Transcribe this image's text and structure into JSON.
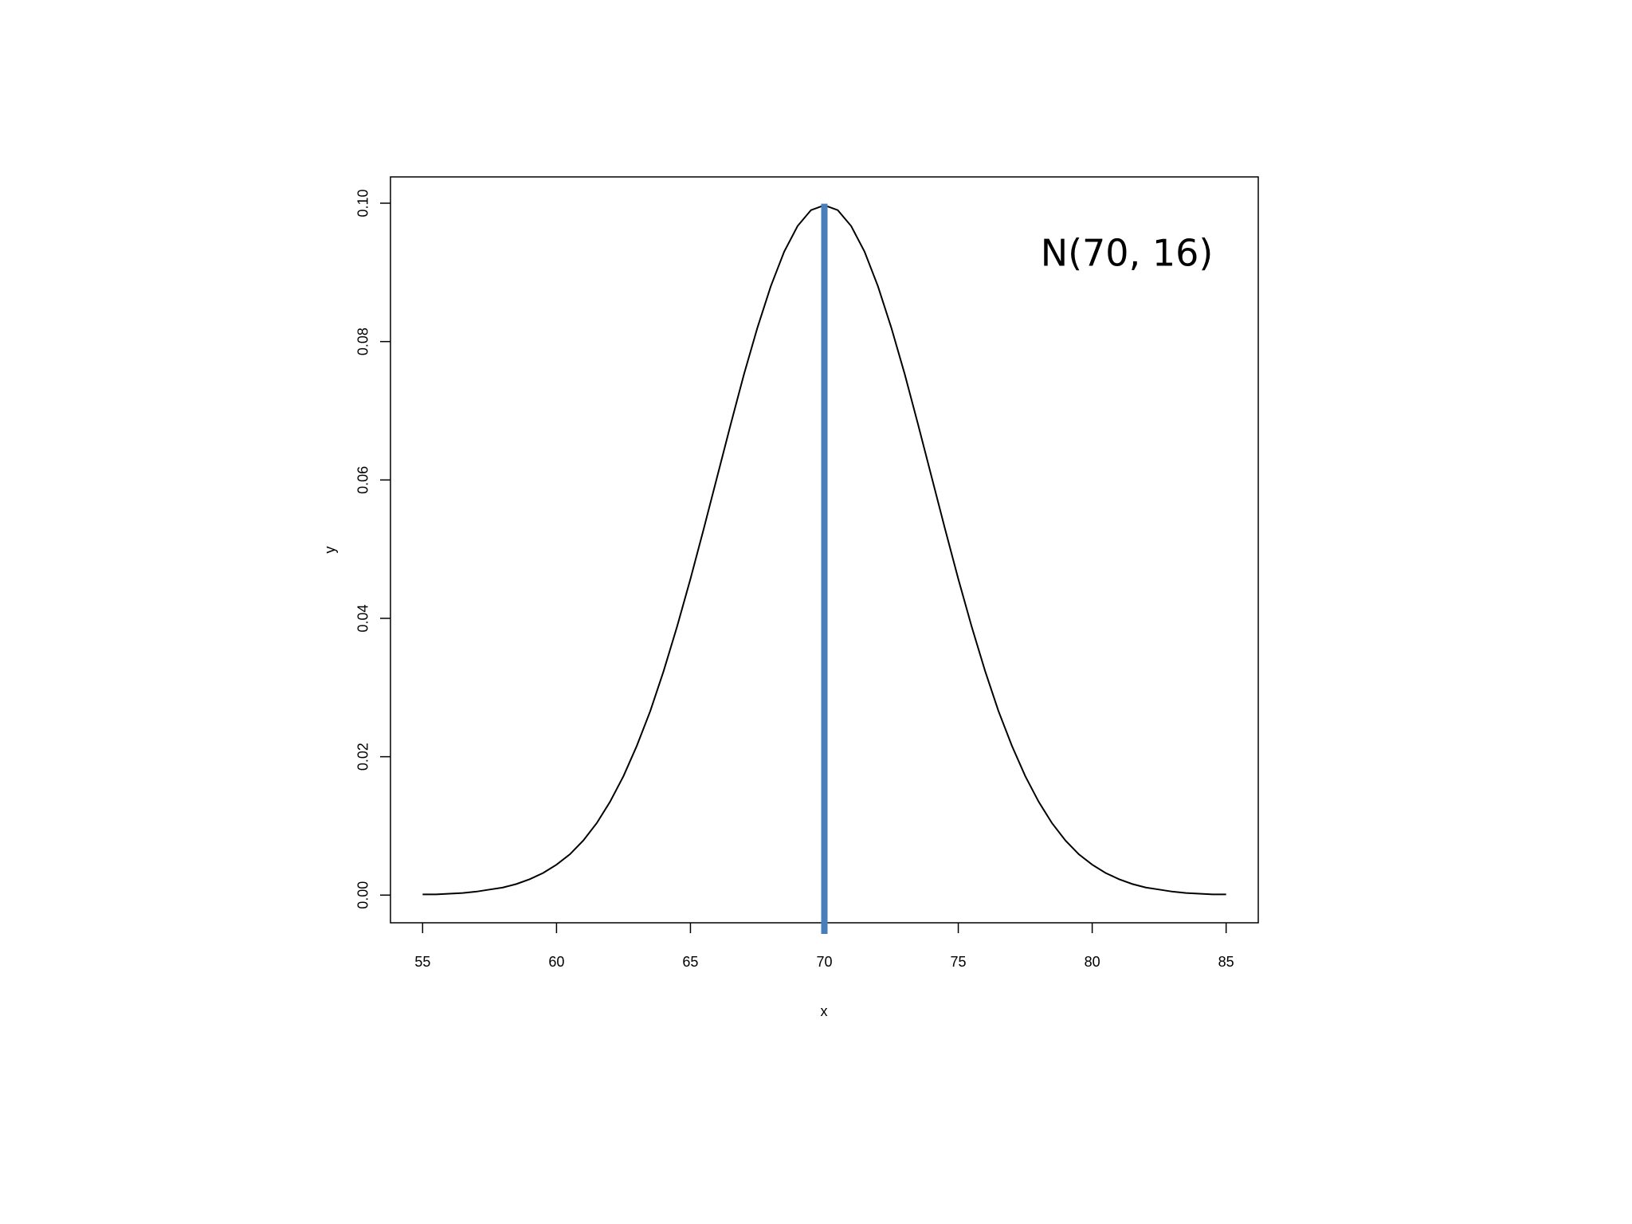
{
  "chart_data": {
    "type": "line",
    "annotation": "N(70, 16)",
    "x_label": "x",
    "y_label": "y",
    "x": [
      55,
      55.5,
      56,
      56.5,
      57,
      57.5,
      58,
      58.5,
      59,
      59.5,
      60,
      60.5,
      61,
      61.5,
      62,
      62.5,
      63,
      63.5,
      64,
      64.5,
      65,
      65.5,
      66,
      66.5,
      67,
      67.5,
      68,
      68.5,
      69,
      69.5,
      70,
      70.5,
      71,
      71.5,
      72,
      72.5,
      73,
      73.5,
      74,
      74.5,
      75,
      75.5,
      76,
      76.5,
      77,
      77.5,
      78,
      78.5,
      79,
      79.5,
      80,
      80.5,
      81,
      81.5,
      82,
      82.5,
      83,
      83.5,
      84,
      84.5,
      85
    ],
    "series": [
      {
        "color": "#000000",
        "values": [
          0.0001,
          0.0001,
          0.0002,
          0.0003,
          0.0005,
          0.0008,
          0.0011,
          0.0016,
          0.0023,
          0.0032,
          0.0044,
          0.0059,
          0.0079,
          0.0104,
          0.0135,
          0.0172,
          0.0216,
          0.0266,
          0.0324,
          0.0388,
          0.0457,
          0.053,
          0.0605,
          0.068,
          0.0753,
          0.082,
          0.088,
          0.093,
          0.0967,
          0.099,
          0.0997,
          0.099,
          0.0967,
          0.093,
          0.088,
          0.082,
          0.0753,
          0.068,
          0.0605,
          0.053,
          0.0457,
          0.0388,
          0.0324,
          0.0266,
          0.0216,
          0.0172,
          0.0135,
          0.0104,
          0.0079,
          0.0059,
          0.0044,
          0.0032,
          0.0023,
          0.0016,
          0.0011,
          0.0008,
          0.0005,
          0.0003,
          0.0002,
          0.0001,
          0.0001
        ]
      }
    ],
    "vline": 70,
    "vline_color": "#4a7ebb",
    "xlim": [
      53.8,
      86.2
    ],
    "ylim": [
      -0.004,
      0.1038
    ],
    "xticks": [
      55,
      60,
      65,
      70,
      75,
      80,
      85
    ],
    "yticks": [
      {
        "value": 0,
        "label": "0.00"
      },
      0.02,
      0.04,
      0.06,
      0.08,
      {
        "value": 0.1,
        "label": "0.10"
      }
    ]
  }
}
